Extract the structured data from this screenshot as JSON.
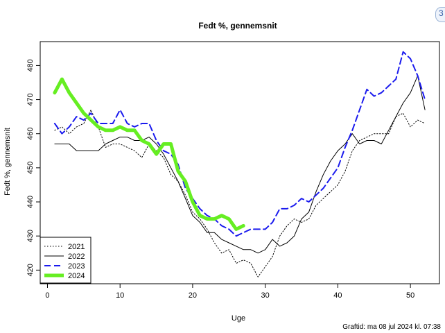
{
  "chart_data": {
    "type": "line",
    "title": "Fedt %, gennemsnit",
    "xlabel": "Uge",
    "ylabel": "Fedt %, gennemsnit",
    "xlim": [
      -1,
      54
    ],
    "ylim": [
      416,
      487
    ],
    "xticks": [
      0,
      10,
      20,
      30,
      40,
      50
    ],
    "yticks": [
      420,
      430,
      440,
      450,
      460,
      470,
      480
    ],
    "grid": false,
    "legend_position": "bottom-left",
    "caption": "Graftid: ma 08 jul 2024 kl. 07:38",
    "series": [
      {
        "name": "2021",
        "color": "#000000",
        "style": "dotted",
        "width": 1,
        "x": [
          1,
          2,
          3,
          4,
          5,
          6,
          7,
          8,
          9,
          10,
          11,
          12,
          13,
          14,
          15,
          16,
          17,
          18,
          19,
          20,
          21,
          22,
          23,
          24,
          25,
          26,
          27,
          28,
          29,
          30,
          31,
          32,
          33,
          34,
          35,
          36,
          37,
          38,
          39,
          40,
          41,
          42,
          43,
          44,
          45,
          46,
          47,
          48,
          49,
          50,
          51,
          52
        ],
        "y": [
          461,
          462,
          460,
          462,
          463,
          467,
          462,
          456,
          457,
          457,
          456,
          455,
          453,
          457,
          455,
          453,
          448,
          446,
          442,
          437,
          435,
          432,
          428,
          425,
          426,
          422,
          423,
          422,
          418,
          421,
          424,
          430,
          433,
          435,
          434,
          435,
          439,
          441,
          443,
          445,
          449,
          455,
          458,
          459,
          460,
          460,
          460,
          465,
          466,
          462,
          464,
          463
        ]
      },
      {
        "name": "2022",
        "color": "#000000",
        "style": "solid",
        "width": 1,
        "x": [
          1,
          2,
          3,
          4,
          5,
          6,
          7,
          8,
          9,
          10,
          11,
          12,
          13,
          14,
          15,
          16,
          17,
          18,
          19,
          20,
          21,
          22,
          23,
          24,
          25,
          26,
          27,
          28,
          29,
          30,
          31,
          32,
          33,
          34,
          35,
          36,
          37,
          38,
          39,
          40,
          41,
          42,
          43,
          44,
          45,
          46,
          47,
          48,
          49,
          50,
          51,
          52
        ],
        "y": [
          457,
          457,
          457,
          455,
          455,
          455,
          455,
          457,
          458,
          459,
          459,
          458,
          458,
          459,
          457,
          454,
          450,
          446,
          441,
          436,
          434,
          431,
          431,
          429,
          428,
          427,
          426,
          426,
          425,
          426,
          429,
          427,
          428,
          430,
          435,
          437,
          443,
          448,
          452,
          455,
          457,
          460,
          457,
          458,
          458,
          457,
          461,
          465,
          469,
          472,
          477,
          467
        ]
      },
      {
        "name": "2023",
        "color": "#1a1aee",
        "style": "dashed",
        "width": 2,
        "x": [
          1,
          2,
          3,
          4,
          5,
          6,
          7,
          8,
          9,
          10,
          11,
          12,
          13,
          14,
          15,
          16,
          17,
          18,
          19,
          20,
          21,
          22,
          23,
          24,
          25,
          26,
          27,
          28,
          29,
          30,
          31,
          32,
          33,
          34,
          35,
          36,
          37,
          38,
          39,
          40,
          41,
          42,
          43,
          44,
          45,
          46,
          47,
          48,
          49,
          50,
          51,
          52
        ],
        "y": [
          463,
          460,
          462,
          465,
          464,
          466,
          463,
          463,
          463,
          467,
          463,
          462,
          463,
          463,
          458,
          455,
          454,
          451,
          444,
          441,
          438,
          436,
          435,
          433,
          432,
          430,
          431,
          432,
          432,
          432,
          434,
          438,
          438,
          439,
          441,
          440,
          442,
          444,
          447,
          450,
          456,
          461,
          467,
          473,
          471,
          472,
          474,
          476,
          484,
          482,
          477,
          470
        ]
      },
      {
        "name": "2024",
        "color": "#66ee22",
        "style": "solid",
        "width": 5,
        "x": [
          1,
          2,
          3,
          4,
          5,
          6,
          7,
          8,
          9,
          10,
          11,
          12,
          13,
          14,
          15,
          16,
          17,
          18,
          19,
          20,
          21,
          22,
          23,
          24,
          25,
          26,
          27
        ],
        "y": [
          472,
          476,
          472,
          469,
          466,
          464,
          462,
          461,
          461,
          462,
          461,
          461,
          458,
          457,
          454,
          457,
          457,
          449,
          446,
          440,
          436,
          435,
          435,
          436,
          435,
          432,
          433
        ]
      }
    ]
  }
}
